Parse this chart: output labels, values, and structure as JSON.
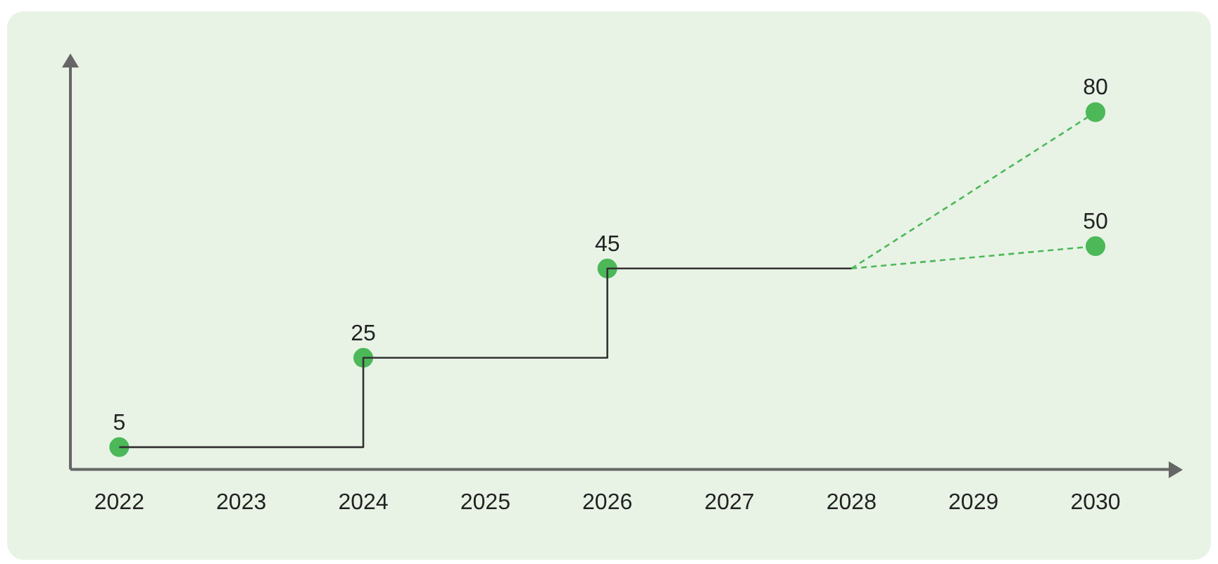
{
  "chart_data": {
    "type": "line",
    "xlim": [
      2021.6,
      2030.6
    ],
    "xticks": [
      2022,
      2023,
      2024,
      2025,
      2026,
      2027,
      2028,
      2029,
      2030
    ],
    "tick_labels": "x",
    "grid": false,
    "legend": false,
    "series": [
      {
        "type": "step",
        "color": "#333333",
        "x": [
          2022,
          2024,
          2026,
          2028
        ],
        "values": [
          5,
          25,
          45,
          45
        ],
        "marker": "none",
        "line_style": "solid"
      },
      {
        "type": "line",
        "color": "#4cb858",
        "x": [
          2028,
          2030
        ],
        "values": [
          45,
          80
        ],
        "marker": "none",
        "line_style": "dashed"
      },
      {
        "type": "line",
        "color": "#4cb858",
        "x": [
          2028,
          2030
        ],
        "values": [
          45,
          50
        ],
        "marker": "none",
        "line_style": "dashed"
      },
      {
        "type": "scatter",
        "color": "#4cb858",
        "x": [
          2022,
          2024,
          2026,
          2030,
          2030
        ],
        "values": [
          5,
          25,
          45,
          80,
          50
        ],
        "marker": "circle",
        "data_labels": true
      }
    ]
  }
}
